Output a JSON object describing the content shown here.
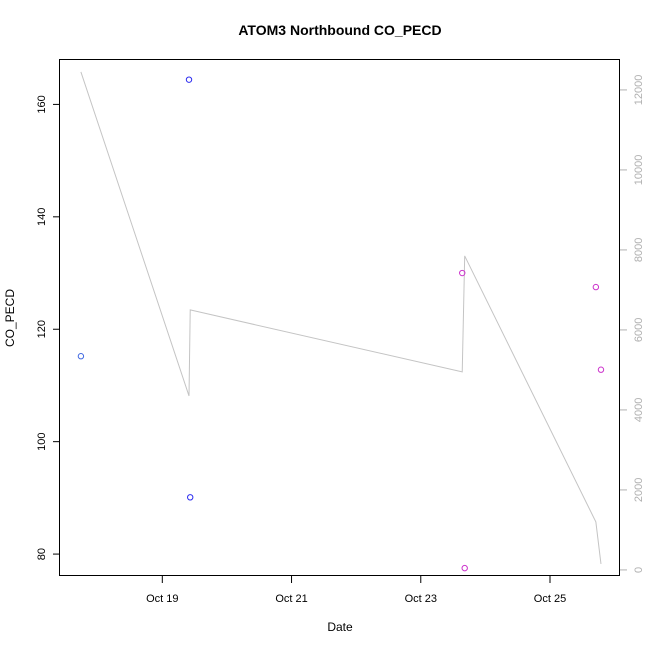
{
  "chart_data": {
    "type": "scatter",
    "title": "ATOM3 Northbound CO_PECD",
    "xlabel": "Date",
    "ylabel": "CO_PECD",
    "x_ticks": [
      "Oct 19",
      "Oct 21",
      "Oct 23",
      "Oct 25"
    ],
    "x_tick_dates": [
      "2023-10-19",
      "2023-10-21",
      "2023-10-23",
      "2023-10-25"
    ],
    "xlim": [
      "2023-10-17 10:00",
      "2023-10-26 02:00"
    ],
    "ylim": [
      76.1,
      167.9
    ],
    "y_ticks": [
      80,
      100,
      120,
      140,
      160
    ],
    "y2lim": [
      -152,
      12748
    ],
    "y2_ticks": [
      0,
      2000,
      4000,
      6000,
      8000,
      10000,
      12000
    ],
    "y2_color": "#b0b0b0",
    "points": [
      {
        "x": "2023-10-17 17:46",
        "y": 115.2,
        "color": "#4169e1"
      },
      {
        "x": "2023-10-19 09:55",
        "y": 164.4,
        "color": "#2b2bf0"
      },
      {
        "x": "2023-10-19 10:22",
        "y": 90.1,
        "color": "#2b2bf0"
      },
      {
        "x": "2023-10-23 15:24",
        "y": 130.0,
        "color": "#cc33cc"
      },
      {
        "x": "2023-10-23 16:19",
        "y": 77.5,
        "color": "#cc33cc"
      },
      {
        "x": "2023-10-25 17:02",
        "y": 127.5,
        "color": "#cc33cc"
      },
      {
        "x": "2023-10-25 18:56",
        "y": 112.8,
        "color": "#cc33cc"
      }
    ],
    "secondary_line": {
      "axis": "right",
      "color": "#c4c4c4",
      "points": [
        {
          "x": "2023-10-17 17:46",
          "y": 12450
        },
        {
          "x": "2023-10-19 09:55",
          "y": 4350
        },
        {
          "x": "2023-10-19 10:22",
          "y": 6500
        },
        {
          "x": "2023-10-23 15:24",
          "y": 4950
        },
        {
          "x": "2023-10-23 16:19",
          "y": 7850
        },
        {
          "x": "2023-10-25 17:02",
          "y": 1200
        },
        {
          "x": "2023-10-25 18:56",
          "y": 150
        }
      ]
    }
  }
}
